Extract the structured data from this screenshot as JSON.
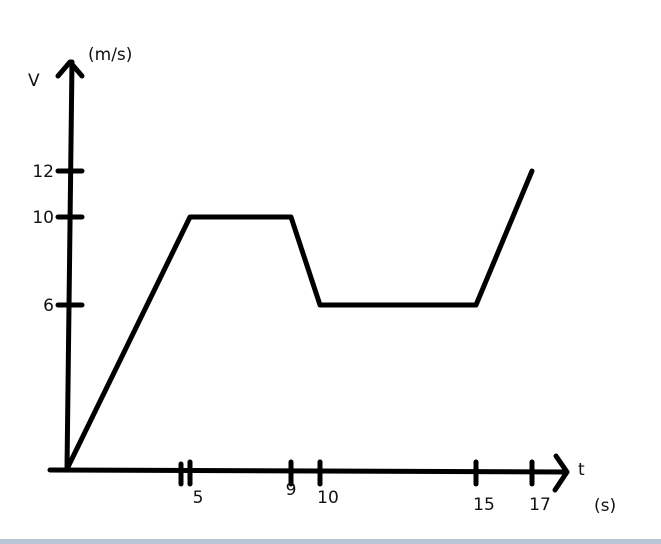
{
  "chart_data": {
    "type": "line",
    "title": "",
    "xlabel": "t",
    "xunit": "(s)",
    "ylabel": "V",
    "yunit": "(m/s)",
    "x_ticks": [
      5,
      9,
      10,
      15,
      17
    ],
    "y_ticks": [
      6,
      10,
      12
    ],
    "x_tick_labels": [
      "5",
      "9",
      "10",
      "15",
      "17"
    ],
    "y_tick_labels": [
      "6",
      "10",
      "12"
    ],
    "xlim": [
      0,
      18
    ],
    "ylim": [
      0,
      14
    ],
    "grid": false,
    "series": [
      {
        "x": [
          0,
          5,
          9,
          10,
          15,
          17
        ],
        "y": [
          0,
          10,
          10,
          6,
          6,
          12
        ]
      }
    ],
    "line_color": "#000000"
  }
}
